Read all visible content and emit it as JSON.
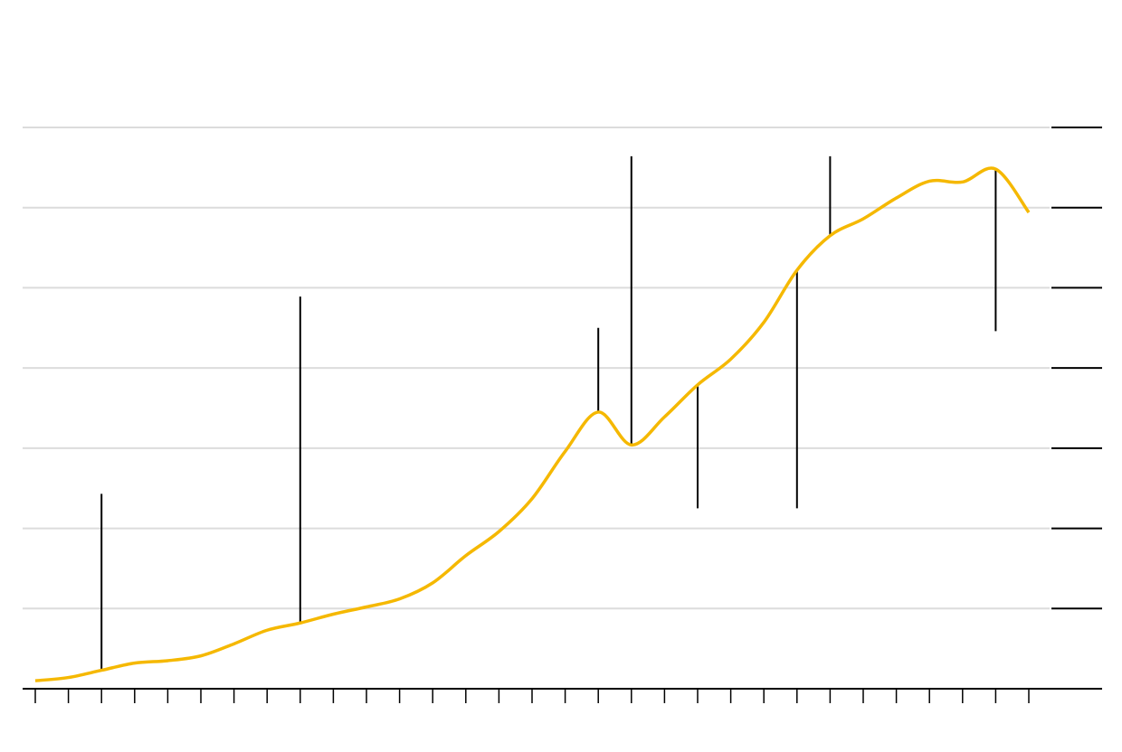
{
  "chart_data": {
    "type": "line",
    "categories": [
      null,
      null,
      null,
      null,
      null,
      null,
      null,
      null,
      null,
      null,
      null,
      null,
      null,
      null,
      null,
      null,
      null,
      null,
      null,
      null,
      null,
      null,
      null,
      null,
      null,
      null,
      null,
      null,
      null,
      null,
      null
    ],
    "series": [
      {
        "color": "#f5b800",
        "values": [
          0.1,
          0.14,
          0.23,
          0.32,
          0.35,
          0.41,
          0.56,
          0.73,
          0.82,
          0.93,
          1.02,
          1.12,
          1.32,
          1.66,
          1.96,
          2.37,
          2.96,
          3.45,
          3.04,
          3.39,
          3.79,
          4.11,
          4.57,
          5.22,
          5.65,
          5.86,
          6.12,
          6.33,
          6.32,
          6.48,
          5.94
        ]
      }
    ],
    "spike_ends": [
      null,
      null,
      2.43,
      null,
      null,
      null,
      null,
      null,
      4.89,
      null,
      null,
      null,
      null,
      null,
      null,
      null,
      null,
      4.5,
      6.64,
      null,
      2.25,
      null,
      null,
      2.25,
      6.64,
      null,
      null,
      null,
      null,
      4.46,
      null
    ],
    "spike_color": "#000000",
    "ylim": [
      0,
      7
    ],
    "yticks": [
      0,
      1,
      2,
      3,
      4,
      5,
      6,
      7
    ],
    "grid": true
  }
}
